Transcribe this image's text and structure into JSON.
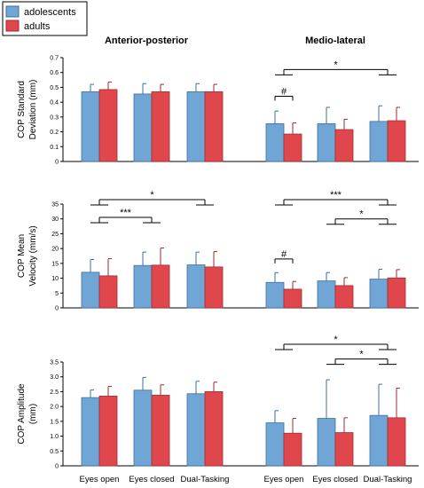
{
  "legend": {
    "items": [
      {
        "label": "adolescents",
        "color": "#6fa6d6"
      },
      {
        "label": "adults",
        "color": "#e0474c"
      }
    ]
  },
  "section_titles": {
    "left": "Anterior-posterior",
    "right": "Medio-lateral"
  },
  "colors": {
    "adolescents": "#6fa6d6",
    "adolescents_edge": "#3d6f9f",
    "adults": "#e0474c",
    "adults_edge": "#a32a2e"
  },
  "chart_data": [
    {
      "type": "bar",
      "ylabel": [
        "COP Standard",
        "Deviation (mm)"
      ],
      "ylim": [
        0,
        0.7
      ],
      "yticks": [
        "0",
        "0.1",
        "0.2",
        "0.3",
        "0.4",
        "0.5",
        "0.6",
        "0.7"
      ],
      "categories": [
        "",
        "",
        "",
        "",
        "",
        ""
      ],
      "series": [
        {
          "name": "adolescents",
          "values": [
            0.47,
            0.455,
            0.47,
            0.255,
            0.255,
            0.27
          ],
          "err": [
            0.05,
            0.07,
            0.055,
            0.085,
            0.11,
            0.105
          ]
        },
        {
          "name": "adults",
          "values": [
            0.485,
            0.47,
            0.47,
            0.185,
            0.215,
            0.275
          ],
          "err": [
            0.05,
            0.05,
            0.05,
            0.075,
            0.07,
            0.09
          ]
        }
      ],
      "significance": [
        {
          "label": "*",
          "from": 3,
          "to": 5,
          "y": 0.62,
          "style": "group"
        },
        {
          "label": "#",
          "from": 3,
          "to": 3,
          "y": 0.44,
          "style": "pair"
        }
      ]
    },
    {
      "type": "bar",
      "ylabel": [
        "COP Mean",
        "Velocity (mm/s)"
      ],
      "ylim": [
        0,
        35
      ],
      "yticks": [
        "0",
        "5",
        "10",
        "15",
        "20",
        "25",
        "30",
        "35"
      ],
      "categories": [
        "",
        "",
        "",
        "",
        "",
        ""
      ],
      "series": [
        {
          "name": "adolescents",
          "values": [
            12,
            14.3,
            14.5,
            8.6,
            9.1,
            9.7
          ],
          "err": [
            4.3,
            4.5,
            4.3,
            3.3,
            2.8,
            3.3
          ]
        },
        {
          "name": "adults",
          "values": [
            10.8,
            14.4,
            13.8,
            6.3,
            7.5,
            10.1
          ],
          "err": [
            5.8,
            5.8,
            5.2,
            2.6,
            2.7,
            2.8
          ]
        }
      ],
      "significance": [
        {
          "label": "*",
          "from": 0,
          "to": 2,
          "y": 36.5,
          "style": "group"
        },
        {
          "label": "***",
          "from": 0,
          "to": 1,
          "y": 30.5,
          "style": "group"
        },
        {
          "label": "***",
          "from": 3,
          "to": 5,
          "y": 36.5,
          "style": "group"
        },
        {
          "label": "*",
          "from": 4,
          "to": 5,
          "y": 30,
          "style": "group"
        },
        {
          "label": "#",
          "from": 3,
          "to": 3,
          "y": 16.5,
          "style": "pair"
        }
      ]
    },
    {
      "type": "bar",
      "ylabel": [
        "COP Amplitude",
        "(mm)"
      ],
      "ylim": [
        0,
        3.5
      ],
      "yticks": [
        "0",
        "0.5",
        "1.0",
        "1.5",
        "2.0",
        "2.5",
        "3.0",
        "3.5"
      ],
      "categories": [
        "Eyes open",
        "Eyes closed",
        "Dual-Tasking",
        "Eyes open",
        "Eyes closed",
        "Dual-Tasking"
      ],
      "series": [
        {
          "name": "adolescents",
          "values": [
            2.3,
            2.55,
            2.43,
            1.45,
            1.6,
            1.7
          ],
          "err": [
            0.26,
            0.43,
            0.42,
            0.41,
            1.3,
            1.05
          ]
        },
        {
          "name": "adults",
          "values": [
            2.35,
            2.38,
            2.5,
            1.1,
            1.12,
            1.62
          ],
          "err": [
            0.33,
            0.35,
            0.32,
            0.5,
            0.5,
            1.0
          ]
        }
      ],
      "significance": [
        {
          "label": "*",
          "from": 3,
          "to": 5,
          "y": 4.1,
          "style": "group"
        },
        {
          "label": "*",
          "from": 4,
          "to": 5,
          "y": 3.6,
          "style": "group"
        }
      ]
    }
  ]
}
